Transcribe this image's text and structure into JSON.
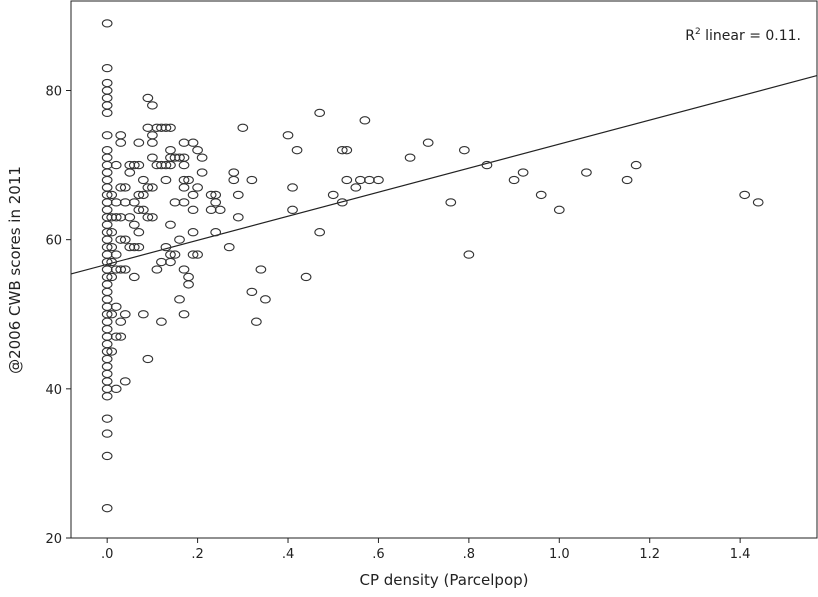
{
  "chart_data": {
    "type": "scatter",
    "xlabel": "CP density (Parcelpop)",
    "ylabel": "@2006 CWB scores in 2011",
    "annotation": {
      "base": "R",
      "sup": "2",
      "rest": " linear = 0.11."
    },
    "xlim": [
      -0.08,
      1.57
    ],
    "ylim": [
      20,
      92
    ],
    "x_ticks": [
      0.0,
      0.2,
      0.4,
      0.6,
      0.8,
      1.0,
      1.2,
      1.4
    ],
    "x_tick_labels": [
      ".0",
      ".2",
      ".4",
      ".6",
      ".8",
      "1.0",
      "1.2",
      "1.4"
    ],
    "y_ticks": [
      20,
      40,
      60,
      80
    ],
    "y_tick_labels": [
      "20",
      "40",
      "60",
      "80"
    ],
    "grid": false,
    "fit_line": {
      "x": [
        -0.08,
        1.57
      ],
      "y": [
        55.4,
        82.0
      ]
    },
    "points": [
      [
        0,
        89
      ],
      [
        0,
        83
      ],
      [
        0,
        81
      ],
      [
        0,
        80
      ],
      [
        0,
        79
      ],
      [
        0,
        78
      ],
      [
        0,
        77
      ],
      [
        0,
        74
      ],
      [
        0,
        72
      ],
      [
        0,
        71
      ],
      [
        0,
        70
      ],
      [
        0,
        69
      ],
      [
        0,
        68
      ],
      [
        0,
        67
      ],
      [
        0,
        66
      ],
      [
        0,
        65
      ],
      [
        0,
        64
      ],
      [
        0,
        63
      ],
      [
        0,
        62
      ],
      [
        0,
        61
      ],
      [
        0,
        60
      ],
      [
        0,
        59
      ],
      [
        0,
        58
      ],
      [
        0,
        57
      ],
      [
        0,
        56
      ],
      [
        0,
        55
      ],
      [
        0,
        54
      ],
      [
        0,
        53
      ],
      [
        0,
        52
      ],
      [
        0,
        51
      ],
      [
        0,
        50
      ],
      [
        0,
        49
      ],
      [
        0,
        48
      ],
      [
        0,
        47
      ],
      [
        0,
        46
      ],
      [
        0,
        45
      ],
      [
        0,
        44
      ],
      [
        0,
        43
      ],
      [
        0,
        42
      ],
      [
        0,
        41
      ],
      [
        0,
        40
      ],
      [
        0,
        39
      ],
      [
        0,
        36
      ],
      [
        0,
        34
      ],
      [
        0,
        31
      ],
      [
        0,
        24
      ],
      [
        0.01,
        66
      ],
      [
        0.01,
        63
      ],
      [
        0.01,
        61
      ],
      [
        0.01,
        59
      ],
      [
        0.01,
        57
      ],
      [
        0.01,
        55
      ],
      [
        0.01,
        50
      ],
      [
        0.01,
        45
      ],
      [
        0.02,
        70
      ],
      [
        0.02,
        65
      ],
      [
        0.02,
        63
      ],
      [
        0.02,
        58
      ],
      [
        0.02,
        56
      ],
      [
        0.02,
        51
      ],
      [
        0.02,
        47
      ],
      [
        0.02,
        40
      ],
      [
        0.03,
        74
      ],
      [
        0.03,
        73
      ],
      [
        0.03,
        67
      ],
      [
        0.03,
        63
      ],
      [
        0.03,
        60
      ],
      [
        0.03,
        56
      ],
      [
        0.03,
        49
      ],
      [
        0.03,
        47
      ],
      [
        0.04,
        67
      ],
      [
        0.04,
        65
      ],
      [
        0.04,
        60
      ],
      [
        0.04,
        56
      ],
      [
        0.04,
        50
      ],
      [
        0.04,
        41
      ],
      [
        0.05,
        70
      ],
      [
        0.05,
        69
      ],
      [
        0.05,
        63
      ],
      [
        0.05,
        59
      ],
      [
        0.06,
        70
      ],
      [
        0.06,
        65
      ],
      [
        0.06,
        62
      ],
      [
        0.06,
        59
      ],
      [
        0.06,
        55
      ],
      [
        0.07,
        73
      ],
      [
        0.07,
        70
      ],
      [
        0.07,
        66
      ],
      [
        0.07,
        64
      ],
      [
        0.07,
        61
      ],
      [
        0.07,
        59
      ],
      [
        0.08,
        68
      ],
      [
        0.08,
        66
      ],
      [
        0.08,
        64
      ],
      [
        0.08,
        50
      ],
      [
        0.09,
        79
      ],
      [
        0.09,
        75
      ],
      [
        0.09,
        67
      ],
      [
        0.09,
        63
      ],
      [
        0.09,
        44
      ],
      [
        0.1,
        78
      ],
      [
        0.1,
        74
      ],
      [
        0.1,
        73
      ],
      [
        0.1,
        71
      ],
      [
        0.1,
        67
      ],
      [
        0.1,
        63
      ],
      [
        0.11,
        75
      ],
      [
        0.11,
        70
      ],
      [
        0.11,
        56
      ],
      [
        0.12,
        75
      ],
      [
        0.12,
        70
      ],
      [
        0.12,
        57
      ],
      [
        0.12,
        49
      ],
      [
        0.13,
        75
      ],
      [
        0.13,
        70
      ],
      [
        0.13,
        68
      ],
      [
        0.13,
        59
      ],
      [
        0.14,
        75
      ],
      [
        0.14,
        72
      ],
      [
        0.14,
        71
      ],
      [
        0.14,
        70
      ],
      [
        0.14,
        62
      ],
      [
        0.14,
        58
      ],
      [
        0.14,
        57
      ],
      [
        0.15,
        71
      ],
      [
        0.15,
        65
      ],
      [
        0.15,
        58
      ],
      [
        0.16,
        71
      ],
      [
        0.16,
        60
      ],
      [
        0.16,
        52
      ],
      [
        0.17,
        73
      ],
      [
        0.17,
        71
      ],
      [
        0.17,
        70
      ],
      [
        0.17,
        68
      ],
      [
        0.17,
        67
      ],
      [
        0.17,
        65
      ],
      [
        0.17,
        56
      ],
      [
        0.17,
        50
      ],
      [
        0.18,
        68
      ],
      [
        0.18,
        55
      ],
      [
        0.18,
        54
      ],
      [
        0.19,
        73
      ],
      [
        0.19,
        66
      ],
      [
        0.19,
        64
      ],
      [
        0.19,
        61
      ],
      [
        0.19,
        58
      ],
      [
        0.2,
        72
      ],
      [
        0.2,
        67
      ],
      [
        0.2,
        58
      ],
      [
        0.21,
        71
      ],
      [
        0.21,
        69
      ],
      [
        0.23,
        66
      ],
      [
        0.23,
        64
      ],
      [
        0.24,
        66
      ],
      [
        0.24,
        65
      ],
      [
        0.24,
        61
      ],
      [
        0.25,
        64
      ],
      [
        0.27,
        59
      ],
      [
        0.28,
        69
      ],
      [
        0.28,
        68
      ],
      [
        0.29,
        66
      ],
      [
        0.29,
        63
      ],
      [
        0.3,
        75
      ],
      [
        0.32,
        68
      ],
      [
        0.32,
        53
      ],
      [
        0.33,
        49
      ],
      [
        0.34,
        56
      ],
      [
        0.35,
        52
      ],
      [
        0.4,
        74
      ],
      [
        0.41,
        67
      ],
      [
        0.41,
        64
      ],
      [
        0.42,
        72
      ],
      [
        0.44,
        55
      ],
      [
        0.47,
        77
      ],
      [
        0.47,
        61
      ],
      [
        0.5,
        66
      ],
      [
        0.52,
        72
      ],
      [
        0.52,
        65
      ],
      [
        0.53,
        72
      ],
      [
        0.53,
        68
      ],
      [
        0.55,
        67
      ],
      [
        0.56,
        68
      ],
      [
        0.57,
        76
      ],
      [
        0.58,
        68
      ],
      [
        0.6,
        68
      ],
      [
        0.67,
        71
      ],
      [
        0.71,
        73
      ],
      [
        0.76,
        65
      ],
      [
        0.79,
        72
      ],
      [
        0.8,
        58
      ],
      [
        0.84,
        70
      ],
      [
        0.9,
        68
      ],
      [
        0.92,
        69
      ],
      [
        0.96,
        66
      ],
      [
        1.0,
        64
      ],
      [
        1.06,
        69
      ],
      [
        1.15,
        68
      ],
      [
        1.17,
        70
      ],
      [
        1.41,
        66
      ],
      [
        1.44,
        65
      ]
    ]
  }
}
